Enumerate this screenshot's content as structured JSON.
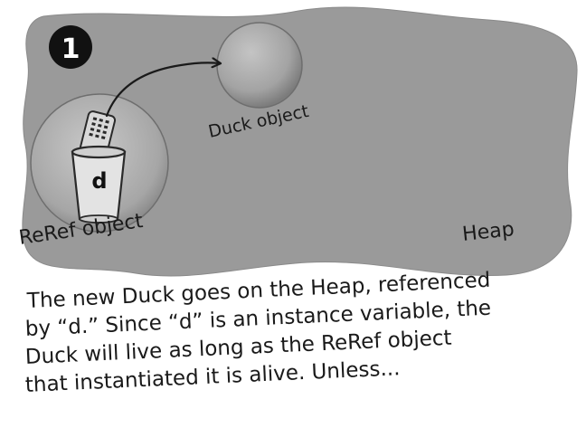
{
  "step_badge": "1",
  "heap": {
    "label": "Heap"
  },
  "duck_object": {
    "label": "Duck object"
  },
  "reref_object": {
    "label": "ReRef object",
    "variable": "d"
  },
  "caption": {
    "lines": [
      "The new Duck goes on the Heap, referenced",
      "by “d.” Since “d” is an instance variable, the",
      "Duck will live as long as the ReRef object",
      "that instantiated it is alive. Unless..."
    ]
  },
  "colors": {
    "heap_fill": "#9a9a9a",
    "object_fill": "#a8a8a8",
    "badge_fill": "#111111",
    "ink": "#1a1a1a"
  }
}
